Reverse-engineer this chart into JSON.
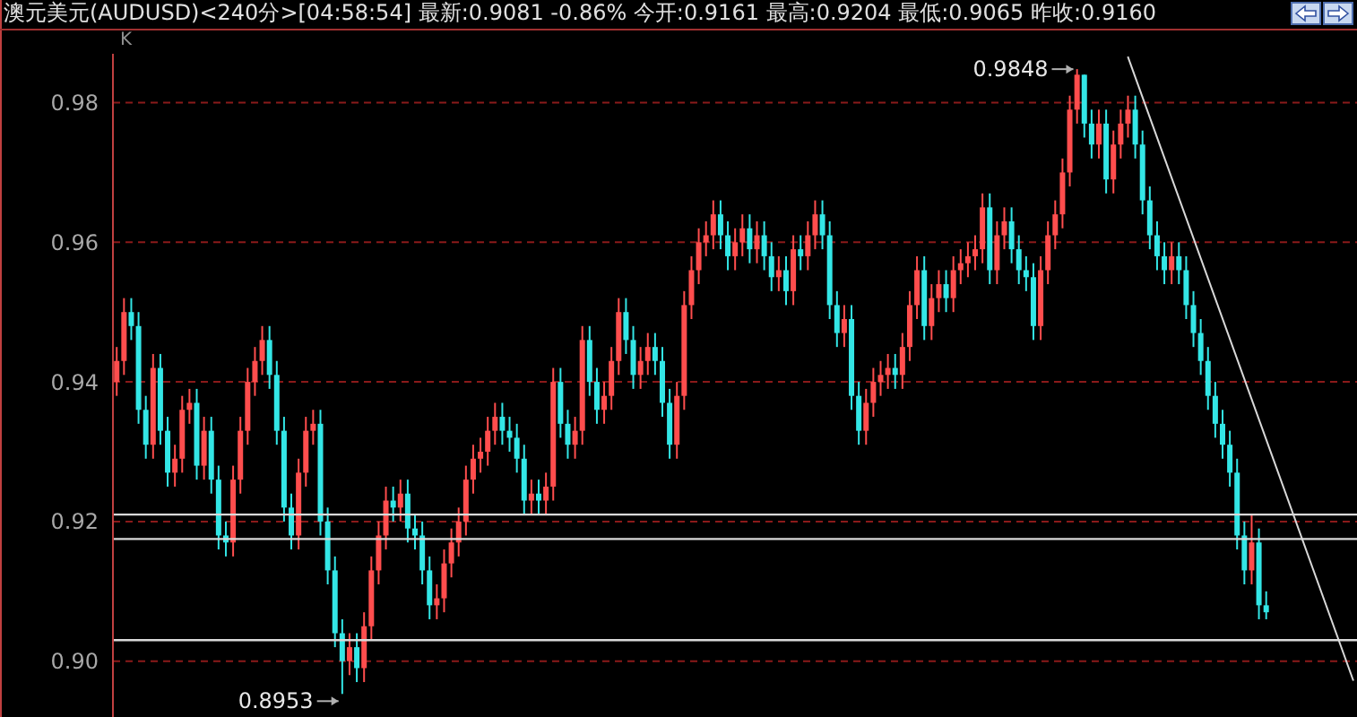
{
  "chart_data": {
    "type": "candlestick",
    "title": "澳元美元(AUDUSD)<240分>[04:58:54] 最新:0.9081 -0.86% 今开:0.9161 最高:0.9204 最低:0.9065 昨收:0.9160",
    "annotations": [
      "K",
      "0.9848",
      "0.8953"
    ],
    "categories": [
      null,
      null,
      null,
      null,
      null,
      null,
      null,
      null,
      null,
      null,
      null,
      null,
      null,
      null,
      null,
      null,
      null,
      null,
      null,
      null,
      null,
      null,
      null,
      null,
      null,
      null,
      null,
      null,
      null,
      null,
      null,
      null,
      null,
      null,
      null,
      null,
      null,
      null,
      null,
      null,
      null,
      null,
      null,
      null,
      null,
      null,
      null,
      null,
      null,
      null,
      null,
      null,
      null,
      null,
      null,
      null,
      null,
      null,
      null,
      null,
      null,
      null,
      null,
      null,
      null,
      null,
      null,
      null,
      null,
      null,
      null,
      null,
      null,
      null,
      null,
      null,
      null,
      null,
      null,
      null,
      null,
      null,
      null,
      null,
      null,
      null,
      null,
      null,
      null,
      null,
      null,
      null,
      null,
      null,
      null,
      null,
      null,
      null,
      null,
      null,
      null,
      null,
      null,
      null,
      null,
      null,
      null,
      null,
      null,
      null,
      null,
      null,
      null,
      null,
      null,
      null,
      null,
      null,
      null,
      null,
      null,
      null,
      null,
      null,
      null,
      null,
      null,
      null,
      null,
      null,
      null,
      null,
      null,
      null,
      null,
      null,
      null,
      null,
      null,
      null,
      null,
      null,
      null,
      null,
      null,
      null,
      null,
      null,
      null,
      null,
      null,
      null,
      null,
      null,
      null,
      null,
      null,
      null,
      null,
      null,
      null,
      null,
      null,
      null,
      null,
      null,
      null,
      null,
      null,
      null,
      null
    ],
    "ohlc": [
      [
        0.94,
        0.945,
        0.938,
        0.943
      ],
      [
        0.943,
        0.952,
        0.941,
        0.95
      ],
      [
        0.95,
        0.952,
        0.946,
        0.948
      ],
      [
        0.948,
        0.95,
        0.934,
        0.936
      ],
      [
        0.936,
        0.938,
        0.929,
        0.931
      ],
      [
        0.931,
        0.944,
        0.929,
        0.942
      ],
      [
        0.942,
        0.944,
        0.931,
        0.933
      ],
      [
        0.933,
        0.935,
        0.925,
        0.927
      ],
      [
        0.927,
        0.931,
        0.925,
        0.929
      ],
      [
        0.929,
        0.938,
        0.927,
        0.936
      ],
      [
        0.936,
        0.939,
        0.934,
        0.937
      ],
      [
        0.937,
        0.939,
        0.926,
        0.928
      ],
      [
        0.928,
        0.935,
        0.926,
        0.933
      ],
      [
        0.933,
        0.935,
        0.924,
        0.926
      ],
      [
        0.926,
        0.928,
        0.916,
        0.918
      ],
      [
        0.918,
        0.92,
        0.915,
        0.917
      ],
      [
        0.917,
        0.928,
        0.915,
        0.926
      ],
      [
        0.926,
        0.935,
        0.924,
        0.933
      ],
      [
        0.933,
        0.942,
        0.931,
        0.94
      ],
      [
        0.94,
        0.945,
        0.938,
        0.943
      ],
      [
        0.943,
        0.948,
        0.941,
        0.946
      ],
      [
        0.946,
        0.948,
        0.939,
        0.941
      ],
      [
        0.941,
        0.943,
        0.931,
        0.933
      ],
      [
        0.933,
        0.935,
        0.92,
        0.922
      ],
      [
        0.922,
        0.924,
        0.916,
        0.918
      ],
      [
        0.918,
        0.929,
        0.916,
        0.927
      ],
      [
        0.927,
        0.935,
        0.925,
        0.933
      ],
      [
        0.933,
        0.936,
        0.931,
        0.934
      ],
      [
        0.934,
        0.936,
        0.918,
        0.92
      ],
      [
        0.92,
        0.922,
        0.911,
        0.913
      ],
      [
        0.913,
        0.915,
        0.902,
        0.904
      ],
      [
        0.904,
        0.906,
        0.8953,
        0.9
      ],
      [
        0.9,
        0.904,
        0.898,
        0.902
      ],
      [
        0.902,
        0.904,
        0.897,
        0.899
      ],
      [
        0.899,
        0.907,
        0.897,
        0.905
      ],
      [
        0.905,
        0.915,
        0.903,
        0.913
      ],
      [
        0.913,
        0.92,
        0.911,
        0.918
      ],
      [
        0.918,
        0.925,
        0.916,
        0.923
      ],
      [
        0.923,
        0.925,
        0.92,
        0.922
      ],
      [
        0.922,
        0.926,
        0.92,
        0.924
      ],
      [
        0.924,
        0.926,
        0.917,
        0.919
      ],
      [
        0.919,
        0.921,
        0.916,
        0.918
      ],
      [
        0.918,
        0.92,
        0.911,
        0.913
      ],
      [
        0.913,
        0.915,
        0.906,
        0.908
      ],
      [
        0.908,
        0.911,
        0.906,
        0.909
      ],
      [
        0.909,
        0.916,
        0.907,
        0.914
      ],
      [
        0.914,
        0.919,
        0.912,
        0.917
      ],
      [
        0.917,
        0.922,
        0.915,
        0.92
      ],
      [
        0.92,
        0.928,
        0.918,
        0.926
      ],
      [
        0.926,
        0.931,
        0.924,
        0.929
      ],
      [
        0.929,
        0.932,
        0.927,
        0.93
      ],
      [
        0.93,
        0.935,
        0.928,
        0.933
      ],
      [
        0.933,
        0.937,
        0.931,
        0.935
      ],
      [
        0.935,
        0.937,
        0.931,
        0.933
      ],
      [
        0.933,
        0.935,
        0.93,
        0.932
      ],
      [
        0.932,
        0.934,
        0.927,
        0.929
      ],
      [
        0.929,
        0.931,
        0.921,
        0.923
      ],
      [
        0.923,
        0.926,
        0.921,
        0.924
      ],
      [
        0.924,
        0.926,
        0.921,
        0.923
      ],
      [
        0.923,
        0.927,
        0.921,
        0.925
      ],
      [
        0.925,
        0.942,
        0.923,
        0.94
      ],
      [
        0.94,
        0.942,
        0.932,
        0.934
      ],
      [
        0.934,
        0.936,
        0.929,
        0.931
      ],
      [
        0.931,
        0.935,
        0.929,
        0.933
      ],
      [
        0.933,
        0.948,
        0.931,
        0.946
      ],
      [
        0.946,
        0.948,
        0.938,
        0.94
      ],
      [
        0.94,
        0.942,
        0.934,
        0.936
      ],
      [
        0.936,
        0.94,
        0.934,
        0.938
      ],
      [
        0.938,
        0.945,
        0.936,
        0.943
      ],
      [
        0.943,
        0.952,
        0.941,
        0.95
      ],
      [
        0.95,
        0.952,
        0.944,
        0.946
      ],
      [
        0.946,
        0.948,
        0.939,
        0.941
      ],
      [
        0.941,
        0.945,
        0.939,
        0.943
      ],
      [
        0.943,
        0.947,
        0.941,
        0.945
      ],
      [
        0.945,
        0.947,
        0.941,
        0.943
      ],
      [
        0.943,
        0.945,
        0.935,
        0.937
      ],
      [
        0.937,
        0.939,
        0.929,
        0.931
      ],
      [
        0.931,
        0.94,
        0.929,
        0.938
      ],
      [
        0.938,
        0.953,
        0.936,
        0.951
      ],
      [
        0.951,
        0.958,
        0.949,
        0.956
      ],
      [
        0.956,
        0.962,
        0.954,
        0.96
      ],
      [
        0.96,
        0.963,
        0.958,
        0.961
      ],
      [
        0.961,
        0.966,
        0.959,
        0.964
      ],
      [
        0.964,
        0.966,
        0.959,
        0.961
      ],
      [
        0.961,
        0.963,
        0.956,
        0.958
      ],
      [
        0.958,
        0.962,
        0.956,
        0.96
      ],
      [
        0.96,
        0.964,
        0.958,
        0.962
      ],
      [
        0.962,
        0.964,
        0.957,
        0.959
      ],
      [
        0.959,
        0.963,
        0.957,
        0.961
      ],
      [
        0.961,
        0.963,
        0.956,
        0.958
      ],
      [
        0.958,
        0.96,
        0.953,
        0.955
      ],
      [
        0.955,
        0.958,
        0.953,
        0.956
      ],
      [
        0.956,
        0.958,
        0.951,
        0.953
      ],
      [
        0.953,
        0.961,
        0.951,
        0.959
      ],
      [
        0.959,
        0.961,
        0.956,
        0.958
      ],
      [
        0.958,
        0.963,
        0.956,
        0.961
      ],
      [
        0.961,
        0.966,
        0.959,
        0.964
      ],
      [
        0.964,
        0.966,
        0.959,
        0.961
      ],
      [
        0.961,
        0.963,
        0.949,
        0.951
      ],
      [
        0.951,
        0.953,
        0.945,
        0.947
      ],
      [
        0.947,
        0.951,
        0.945,
        0.949
      ],
      [
        0.949,
        0.951,
        0.936,
        0.938
      ],
      [
        0.938,
        0.94,
        0.931,
        0.933
      ],
      [
        0.933,
        0.939,
        0.931,
        0.937
      ],
      [
        0.937,
        0.942,
        0.935,
        0.94
      ],
      [
        0.94,
        0.943,
        0.938,
        0.941
      ],
      [
        0.941,
        0.944,
        0.939,
        0.942
      ],
      [
        0.942,
        0.944,
        0.939,
        0.941
      ],
      [
        0.941,
        0.947,
        0.939,
        0.945
      ],
      [
        0.945,
        0.953,
        0.943,
        0.951
      ],
      [
        0.951,
        0.958,
        0.949,
        0.956
      ],
      [
        0.956,
        0.958,
        0.946,
        0.948
      ],
      [
        0.948,
        0.954,
        0.946,
        0.952
      ],
      [
        0.952,
        0.956,
        0.95,
        0.954
      ],
      [
        0.954,
        0.956,
        0.95,
        0.952
      ],
      [
        0.952,
        0.958,
        0.95,
        0.956
      ],
      [
        0.956,
        0.959,
        0.954,
        0.957
      ],
      [
        0.957,
        0.96,
        0.955,
        0.958
      ],
      [
        0.958,
        0.961,
        0.956,
        0.959
      ],
      [
        0.959,
        0.967,
        0.957,
        0.965
      ],
      [
        0.965,
        0.967,
        0.954,
        0.956
      ],
      [
        0.956,
        0.963,
        0.954,
        0.961
      ],
      [
        0.961,
        0.965,
        0.959,
        0.963
      ],
      [
        0.963,
        0.965,
        0.957,
        0.959
      ],
      [
        0.959,
        0.961,
        0.954,
        0.956
      ],
      [
        0.956,
        0.958,
        0.953,
        0.955
      ],
      [
        0.955,
        0.957,
        0.946,
        0.948
      ],
      [
        0.948,
        0.958,
        0.946,
        0.956
      ],
      [
        0.956,
        0.963,
        0.954,
        0.961
      ],
      [
        0.961,
        0.966,
        0.959,
        0.964
      ],
      [
        0.964,
        0.972,
        0.962,
        0.97
      ],
      [
        0.97,
        0.981,
        0.968,
        0.979
      ],
      [
        0.979,
        0.9848,
        0.977,
        0.984
      ],
      [
        0.984,
        0.984,
        0.975,
        0.977
      ],
      [
        0.977,
        0.979,
        0.972,
        0.974
      ],
      [
        0.974,
        0.979,
        0.972,
        0.977
      ],
      [
        0.977,
        0.979,
        0.967,
        0.969
      ],
      [
        0.969,
        0.976,
        0.967,
        0.974
      ],
      [
        0.974,
        0.979,
        0.972,
        0.977
      ],
      [
        0.977,
        0.981,
        0.975,
        0.979
      ],
      [
        0.979,
        0.981,
        0.972,
        0.974
      ],
      [
        0.974,
        0.976,
        0.964,
        0.966
      ],
      [
        0.966,
        0.968,
        0.959,
        0.961
      ],
      [
        0.961,
        0.963,
        0.956,
        0.958
      ],
      [
        0.958,
        0.96,
        0.954,
        0.956
      ],
      [
        0.956,
        0.96,
        0.954,
        0.958
      ],
      [
        0.958,
        0.96,
        0.954,
        0.956
      ],
      [
        0.956,
        0.958,
        0.949,
        0.951
      ],
      [
        0.951,
        0.953,
        0.945,
        0.947
      ],
      [
        0.947,
        0.949,
        0.941,
        0.943
      ],
      [
        0.943,
        0.945,
        0.936,
        0.938
      ],
      [
        0.938,
        0.94,
        0.932,
        0.934
      ],
      [
        0.934,
        0.936,
        0.929,
        0.931
      ],
      [
        0.931,
        0.933,
        0.925,
        0.927
      ],
      [
        0.927,
        0.929,
        0.916,
        0.918
      ],
      [
        0.918,
        0.92,
        0.911,
        0.913
      ],
      [
        0.913,
        0.921,
        0.911,
        0.917
      ],
      [
        0.917,
        0.919,
        0.906,
        0.908
      ],
      [
        0.908,
        0.91,
        0.906,
        0.907
      ],
      null,
      null,
      null,
      null,
      null,
      null,
      null,
      null,
      null,
      null,
      null,
      null
    ],
    "colors": [
      "#ff4d4d",
      "#ff4d4d",
      "#33e6e6",
      "#33e6e6",
      "#33e6e6",
      "#ff4d4d",
      "#33e6e6",
      "#33e6e6",
      "#ff4d4d",
      "#ff4d4d",
      "#ff4d4d",
      "#33e6e6",
      "#ff4d4d",
      "#33e6e6",
      "#33e6e6",
      "#33e6e6",
      "#ff4d4d",
      "#ff4d4d",
      "#ff4d4d",
      "#ff4d4d",
      "#ff4d4d",
      "#33e6e6",
      "#33e6e6",
      "#33e6e6",
      "#33e6e6",
      "#ff4d4d",
      "#ff4d4d",
      "#ff4d4d",
      "#33e6e6",
      "#33e6e6",
      "#33e6e6",
      "#33e6e6",
      "#ff4d4d",
      "#33e6e6",
      "#ff4d4d",
      "#ff4d4d",
      "#ff4d4d",
      "#ff4d4d",
      "#33e6e6",
      "#ff4d4d",
      "#33e6e6",
      "#33e6e6",
      "#33e6e6",
      "#33e6e6",
      "#ff4d4d",
      "#ff4d4d",
      "#ff4d4d",
      "#ff4d4d",
      "#ff4d4d",
      "#ff4d4d",
      "#ff4d4d",
      "#ff4d4d",
      "#ff4d4d",
      "#33e6e6",
      "#33e6e6",
      "#33e6e6",
      "#33e6e6",
      "#ff4d4d",
      "#33e6e6",
      "#ff4d4d",
      "#ff4d4d",
      "#33e6e6",
      "#33e6e6",
      "#ff4d4d",
      "#ff4d4d",
      "#33e6e6",
      "#33e6e6",
      "#ff4d4d",
      "#ff4d4d",
      "#ff4d4d",
      "#33e6e6",
      "#33e6e6",
      "#ff4d4d",
      "#ff4d4d",
      "#33e6e6",
      "#33e6e6",
      "#33e6e6",
      "#ff4d4d",
      "#ff4d4d",
      "#ff4d4d",
      "#ff4d4d",
      "#ff4d4d",
      "#ff4d4d",
      "#33e6e6",
      "#33e6e6",
      "#ff4d4d",
      "#ff4d4d",
      "#33e6e6",
      "#ff4d4d",
      "#33e6e6",
      "#33e6e6",
      "#ff4d4d",
      "#33e6e6",
      "#ff4d4d",
      "#33e6e6",
      "#ff4d4d",
      "#ff4d4d",
      "#33e6e6",
      "#33e6e6",
      "#33e6e6",
      "#ff4d4d",
      "#33e6e6",
      "#33e6e6",
      "#ff4d4d",
      "#ff4d4d",
      "#ff4d4d",
      "#ff4d4d",
      "#33e6e6",
      "#ff4d4d",
      "#ff4d4d",
      "#ff4d4d",
      "#33e6e6",
      "#ff4d4d",
      "#ff4d4d",
      "#33e6e6",
      "#ff4d4d",
      "#ff4d4d",
      "#ff4d4d",
      "#ff4d4d",
      "#ff4d4d",
      "#33e6e6",
      "#ff4d4d",
      "#ff4d4d",
      "#33e6e6",
      "#33e6e6",
      "#33e6e6",
      "#33e6e6",
      "#ff4d4d",
      "#ff4d4d",
      "#ff4d4d",
      "#ff4d4d",
      "#ff4d4d",
      "#ff4d4d",
      "#33e6e6",
      "#33e6e6",
      "#ff4d4d",
      "#33e6e6",
      "#ff4d4d",
      "#ff4d4d",
      "#ff4d4d",
      "#33e6e6",
      "#33e6e6",
      "#33e6e6",
      "#33e6e6",
      "#33e6e6",
      "#ff4d4d",
      "#33e6e6",
      "#33e6e6",
      "#33e6e6",
      "#33e6e6",
      "#33e6e6",
      "#33e6e6",
      "#33e6e6",
      "#33e6e6",
      "#33e6e6",
      "#33e6e6",
      "#ff4d4d",
      "#33e6e6",
      "#33e6e6",
      null,
      null,
      null,
      null,
      null,
      null,
      null,
      null,
      null,
      null,
      null,
      null
    ],
    "series": [
      {
        "type": "line",
        "color": "#d9d9d9",
        "values": [
          null,
          null,
          null,
          null,
          null,
          null,
          null,
          null,
          null,
          null,
          null,
          null,
          null,
          null,
          null,
          null,
          null,
          null,
          null,
          null,
          null,
          null,
          null,
          null,
          null,
          null,
          null,
          null,
          null,
          null,
          null,
          null,
          null,
          null,
          null,
          null,
          null,
          null,
          null,
          null,
          null,
          null,
          null,
          null,
          null,
          null,
          null,
          null,
          null,
          null,
          null,
          null,
          null,
          null,
          null,
          null,
          null,
          null,
          null,
          null,
          null,
          null,
          null,
          null,
          null,
          null,
          null,
          null,
          null,
          null,
          null,
          null,
          null,
          null,
          null,
          null,
          null,
          null,
          null,
          null,
          null,
          null,
          null,
          null,
          null,
          null,
          null,
          null,
          null,
          null,
          null,
          null,
          null,
          null,
          null,
          null,
          null,
          null,
          null,
          null,
          null,
          null,
          null,
          null,
          null,
          null,
          null,
          null,
          null,
          null,
          null,
          null,
          null,
          null,
          null,
          null,
          null,
          null,
          null,
          null,
          null,
          null,
          null,
          null,
          null,
          null,
          null,
          null,
          null,
          null,
          null,
          null,
          null,
          null,
          null,
          null,
          null,
          null,
          null,
          0.9866,
          null,
          null,
          null,
          null,
          null,
          null,
          null,
          null,
          null,
          null,
          null,
          null,
          null,
          null,
          null,
          null,
          null,
          null,
          null,
          null,
          null,
          null,
          null,
          null,
          null,
          null,
          null,
          null,
          null,
          null,
          0.8972
        ]
      }
    ],
    "ylim": [
      0.892,
      0.987
    ],
    "yticks": [
      {
        "value": 0.9,
        "label": "0.90"
      },
      {
        "value": 0.92,
        "label": "0.92"
      },
      {
        "value": 0.94,
        "label": "0.94"
      },
      {
        "value": 0.96,
        "label": "0.96"
      },
      {
        "value": 0.98,
        "label": "0.98"
      }
    ],
    "ref_lines": [
      {
        "axis": "y",
        "value": 0.921,
        "color": "#d9d9d9"
      },
      {
        "axis": "y",
        "value": 0.9175,
        "color": "#d9d9d9"
      },
      {
        "axis": "y",
        "value": 0.903,
        "color": "#d9d9d9"
      }
    ],
    "grid": "y",
    "tick_labels": "y"
  }
}
